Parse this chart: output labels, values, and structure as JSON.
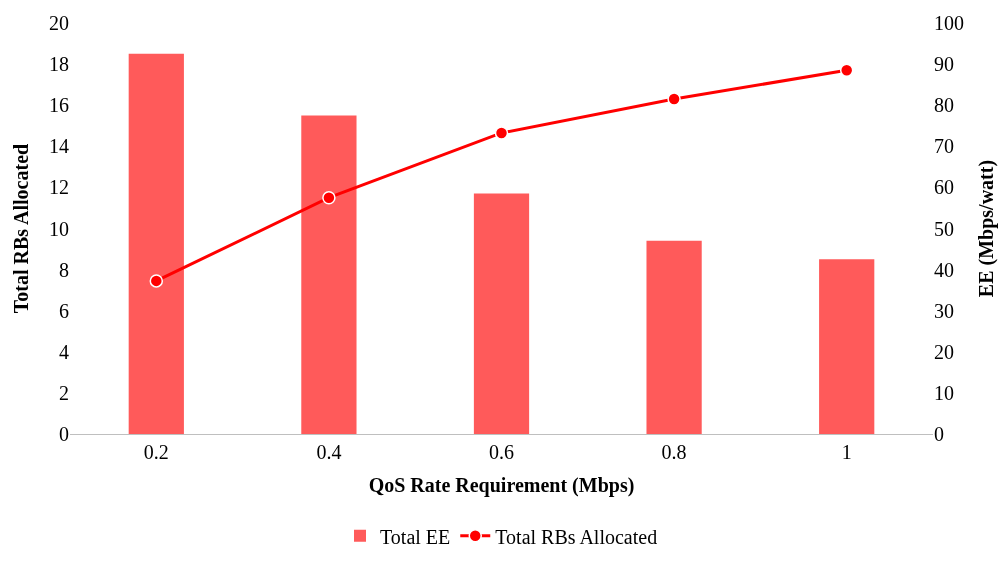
{
  "chart_data": {
    "type": "bar",
    "xlabel": "QoS Rate Requirement (Mbps)",
    "ylabel": "Total RBs Allocated",
    "y2label": "EE (Mbps/watt)",
    "categories": [
      "0.2",
      "0.4",
      "0.6",
      "0.8",
      "1"
    ],
    "series": [
      {
        "name": "Total EE",
        "axis": "y2",
        "color": "#ff5a5a",
        "values": [
          92.5,
          77.5,
          58.5,
          47,
          42.5
        ]
      },
      {
        "name": "Total RBs Allocated",
        "type": "line",
        "color": "#ff0000",
        "marker": "circle",
        "line_style": "solid",
        "values": [
          7.45,
          11.5,
          14.65,
          16.3,
          17.7
        ]
      }
    ],
    "ylim": [
      0,
      20
    ],
    "yticks": [
      0,
      2,
      4,
      6,
      8,
      10,
      12,
      14,
      16,
      18,
      20
    ],
    "y2lim": [
      0,
      100
    ],
    "y2ticks": [
      0,
      10,
      20,
      30,
      40,
      50,
      60,
      70,
      80,
      90,
      100
    ],
    "legend": "bottom"
  }
}
